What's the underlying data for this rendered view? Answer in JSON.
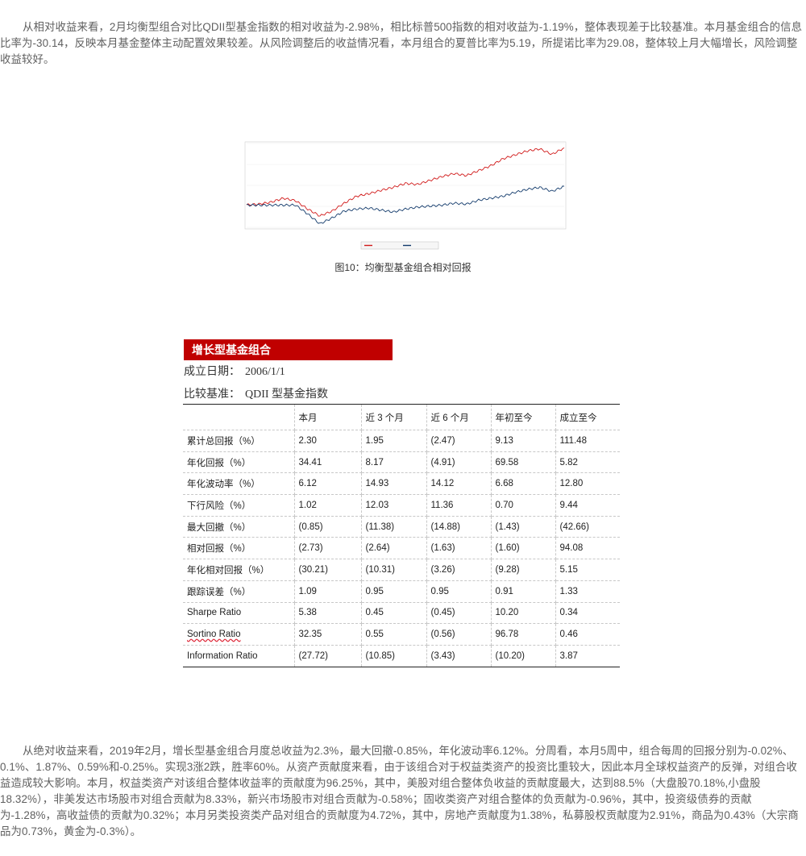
{
  "intro_paragraph": "从相对收益来看，2月均衡型组合对比QDII型基金指数的相对收益为-2.98%，相比标普500指数的相对收益为-1.19%，整体表现差于比较基准。本月基金组合的信息比率为-30.14，反映本月基金整体主动配置效果较差。从风险调整后的收益情况看，本月组合的夏普比率为5.19，所提诺比率为29.08，整体较上月大幅增长，风险调整收益较好。",
  "figure_caption": "图10：均衡型基金组合相对回报",
  "chart_data": {
    "type": "line",
    "title": "",
    "series": [
      {
        "name": "",
        "color": "#d11a1a",
        "values": [
          0.5,
          2,
          6,
          14,
          9,
          -8,
          -22,
          -12,
          4,
          18,
          23,
          30,
          36,
          44,
          42,
          50,
          58,
          64,
          60,
          70,
          80,
          94,
          102,
          110,
          114,
          103,
          116
        ]
      },
      {
        "name": "",
        "color": "#123a6b",
        "values": [
          0,
          0,
          0,
          0,
          0,
          -18,
          -38,
          -26,
          -12,
          -8,
          -6,
          -10,
          -14,
          -8,
          -4,
          -2,
          0,
          4,
          2,
          10,
          14,
          18,
          26,
          32,
          36,
          28,
          38
        ]
      }
    ],
    "ylim": [
      -45,
      125
    ]
  },
  "growth_section": {
    "heading": "增长型基金组合",
    "inception_label": "成立日期：",
    "inception_value": "2006/1/1",
    "benchmark_label": "比较基准：",
    "benchmark_value": "QDII 型基金指数"
  },
  "table": {
    "headers": [
      "",
      "本月",
      "近 3 个月",
      "近 6 个月",
      "年初至今",
      "成立至今"
    ],
    "rows": [
      [
        "累计总回报（%）",
        "2.30",
        "1.95",
        "(2.47)",
        "9.13",
        "111.48"
      ],
      [
        "年化回报（%）",
        "34.41",
        "8.17",
        "(4.91)",
        "69.58",
        "5.82"
      ],
      [
        "年化波动率（%）",
        "6.12",
        "14.93",
        "14.12",
        "6.68",
        "12.80"
      ],
      [
        "下行风险（%）",
        "1.02",
        "12.03",
        "11.36",
        "0.70",
        "9.44"
      ],
      [
        "最大回撤（%）",
        "(0.85)",
        "(11.38)",
        "(14.88)",
        "(1.43)",
        "(42.66)"
      ],
      [
        "相对回报（%）",
        "(2.73)",
        "(2.64)",
        "(1.63)",
        "(1.60)",
        "94.08"
      ],
      [
        "年化相对回报（%）",
        "(30.21)",
        "(10.31)",
        "(3.26)",
        "(9.28)",
        "5.15"
      ],
      [
        "跟踪误差（%）",
        "1.09",
        "0.95",
        "0.95",
        "0.91",
        "1.33"
      ],
      [
        "Sharpe Ratio",
        "5.38",
        "0.45",
        "(0.45)",
        "10.20",
        "0.34"
      ],
      [
        "Sortino Ratio",
        "32.35",
        "0.55",
        "(0.56)",
        "96.78",
        "0.46"
      ],
      [
        "Information Ratio",
        "(27.72)",
        "(10.85)",
        "(3.43)",
        "(10.20)",
        "3.87"
      ]
    ]
  },
  "closing_paragraph": "从绝对收益来看，2019年2月，增长型基金组合月度总收益为2.3%，最大回撤-0.85%，年化波动率6.12%。分周看，本月5周中，组合每周的回报分别为-0.02%、0.1%、1.87%、0.59%和-0.25%。实现3涨2跌，胜率60%。从资产贡献度来看，由于该组合对于权益类资产的投资比重较大，因此本月全球权益资产的反弹，对组合收益造成较大影响。本月，权益类资产对该组合整体收益率的贡献度为96.25%，其中，美股对组合整体负收益的贡献度最大，达到88.5%（大盘股70.18%,小盘股18.32%），非美发达市场股市对组合贡献为8.33%，新兴市场股市对组合贡献为-0.58%；固收类资产对组合整体的负贡献为-0.96%，其中，投资级债券的贡献为-1.28%，高收益债的贡献为0.32%；本月另类投资类产品对组合的贡献度为4.72%，其中，房地产贡献度为1.38%，私募股权贡献度为2.91%，商品为0.43%（大宗商品为0.73%，黄金为-0.3%）。"
}
